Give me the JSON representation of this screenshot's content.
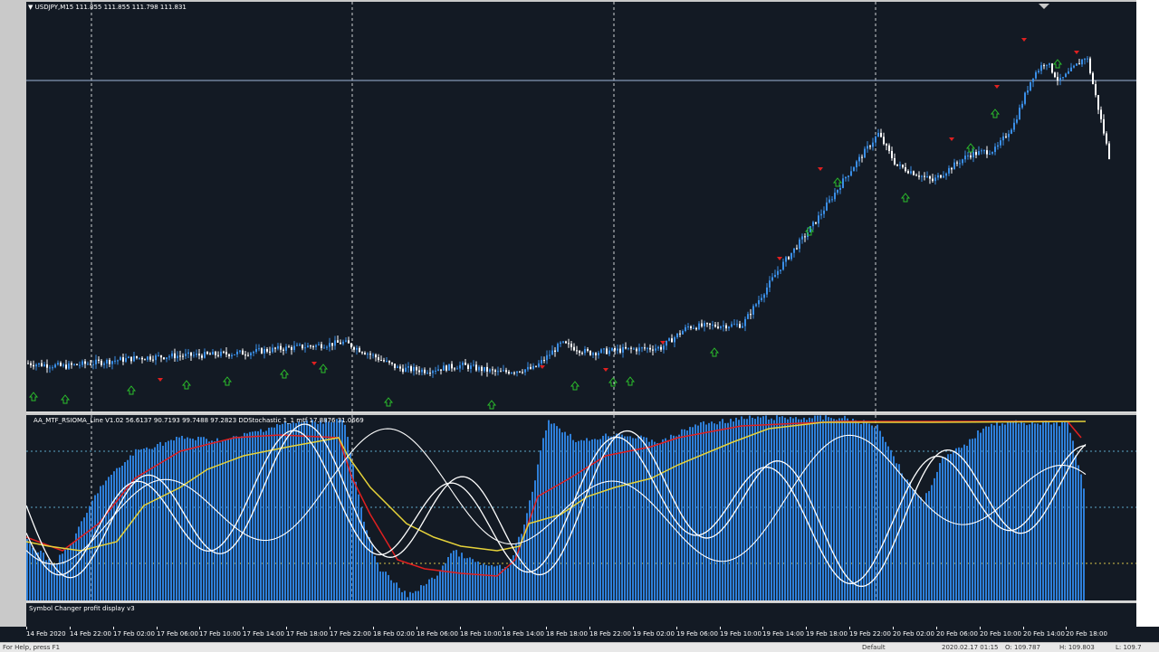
{
  "chart": {
    "symbol_label": "USDJPY,M15",
    "ohlc_readout": "111.855 111.855 111.798 111.831",
    "indicator_label": "AA_MTF_RSIOMA_Line V1.02 56.6137 90.7193 99.7488 97.2823  DDStochastic 1_1 mtf 17.8876 31.0669",
    "subwindow_label": "Symbol Changer profit display v3",
    "x_labels": [
      "14 Feb 2020",
      "14 Feb 22:00",
      "17 Feb 02:00",
      "17 Feb 06:00",
      "17 Feb 10:00",
      "17 Feb 14:00",
      "17 Feb 18:00",
      "17 Feb 22:00",
      "18 Feb 02:00",
      "18 Feb 06:00",
      "18 Feb 10:00",
      "18 Feb 14:00",
      "18 Feb 18:00",
      "18 Feb 22:00",
      "19 Feb 02:00",
      "19 Feb 06:00",
      "19 Feb 10:00",
      "19 Feb 14:00",
      "19 Feb 18:00",
      "19 Feb 22:00",
      "20 Feb 02:00",
      "20 Feb 06:00",
      "20 Feb 10:00",
      "20 Feb 14:00",
      "20 Feb 18:00"
    ],
    "colors": {
      "background": "#131a24",
      "bull": "#3a8ee6",
      "bear": "#ffffff",
      "histogram": "#2e7fd9",
      "rsi_line": "#e02020",
      "ma_line": "#e6d23a",
      "stoch": "#ffffff",
      "buy_arrow": "#2bbf2b",
      "sell_arrow": "#e02020"
    }
  },
  "chart_data": {
    "type": "candlestick",
    "symbol": "USDJPY",
    "timeframe": "M15",
    "ohlc": {
      "open": 111.855,
      "high": 111.855,
      "low": 111.798,
      "close": 111.831
    },
    "indicator_values": {
      "rsioma": [
        56.6137,
        90.7193,
        99.7488,
        97.2823
      ],
      "stochastic": [
        17.8876,
        31.0669
      ]
    },
    "price_path": [
      [
        0,
        109.85
      ],
      [
        40,
        109.82
      ],
      [
        80,
        109.86
      ],
      [
        120,
        109.9
      ],
      [
        160,
        109.92
      ],
      [
        200,
        109.93
      ],
      [
        240,
        109.95
      ],
      [
        280,
        109.99
      ],
      [
        320,
        110.02
      ],
      [
        350,
        110.05
      ],
      [
        380,
        109.93
      ],
      [
        410,
        109.8
      ],
      [
        440,
        109.78
      ],
      [
        480,
        109.83
      ],
      [
        520,
        109.76
      ],
      [
        560,
        109.8
      ],
      [
        590,
        110.04
      ],
      [
        620,
        109.95
      ],
      [
        660,
        109.98
      ],
      [
        700,
        110.0
      ],
      [
        730,
        110.2
      ],
      [
        790,
        110.22
      ],
      [
        830,
        110.75
      ],
      [
        870,
        111.2
      ],
      [
        905,
        111.65
      ],
      [
        940,
        112.05
      ],
      [
        960,
        111.75
      ],
      [
        1000,
        111.6
      ],
      [
        1040,
        111.85
      ],
      [
        1070,
        111.9
      ],
      [
        1090,
        112.15
      ],
      [
        1110,
        112.6
      ],
      [
        1125,
        112.75
      ],
      [
        1140,
        112.55
      ],
      [
        1170,
        112.8
      ],
      [
        1195,
        111.83
      ]
    ]
  },
  "status": {
    "left_text": "For Help, press F1",
    "default_label": "Default",
    "datetime": "2020.02.17 01:15",
    "open_label": "O: 109.787",
    "high_label": "H: 109.803",
    "low_label": "L: 109.7"
  }
}
